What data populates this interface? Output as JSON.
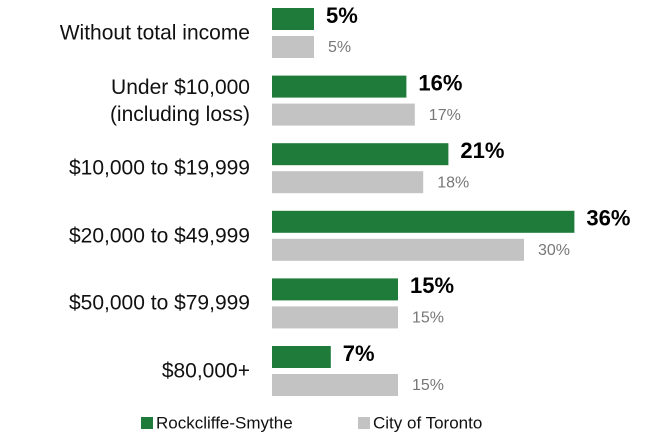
{
  "chart_data": {
    "type": "bar",
    "orientation": "horizontal",
    "categories": [
      "Without total income",
      "Under $10,000\n(including loss)",
      "$10,000 to $19,999",
      "$20,000 to $49,999",
      "$50,000 to $79,999",
      "$80,000+"
    ],
    "series": [
      {
        "name": "Rockcliffe-Smythe",
        "color": "#1e7b3a",
        "values": [
          5,
          16,
          21,
          36,
          15,
          7
        ],
        "value_labels": [
          "5%",
          "16%",
          "21%",
          "36%",
          "15%",
          "7%"
        ]
      },
      {
        "name": "City of Toronto",
        "color": "#c3c3c3",
        "values": [
          5,
          17,
          18,
          30,
          15,
          15
        ],
        "value_labels": [
          "5%",
          "17%",
          "18%",
          "30%",
          "15%",
          "15%"
        ]
      }
    ],
    "legend": "bottom"
  }
}
